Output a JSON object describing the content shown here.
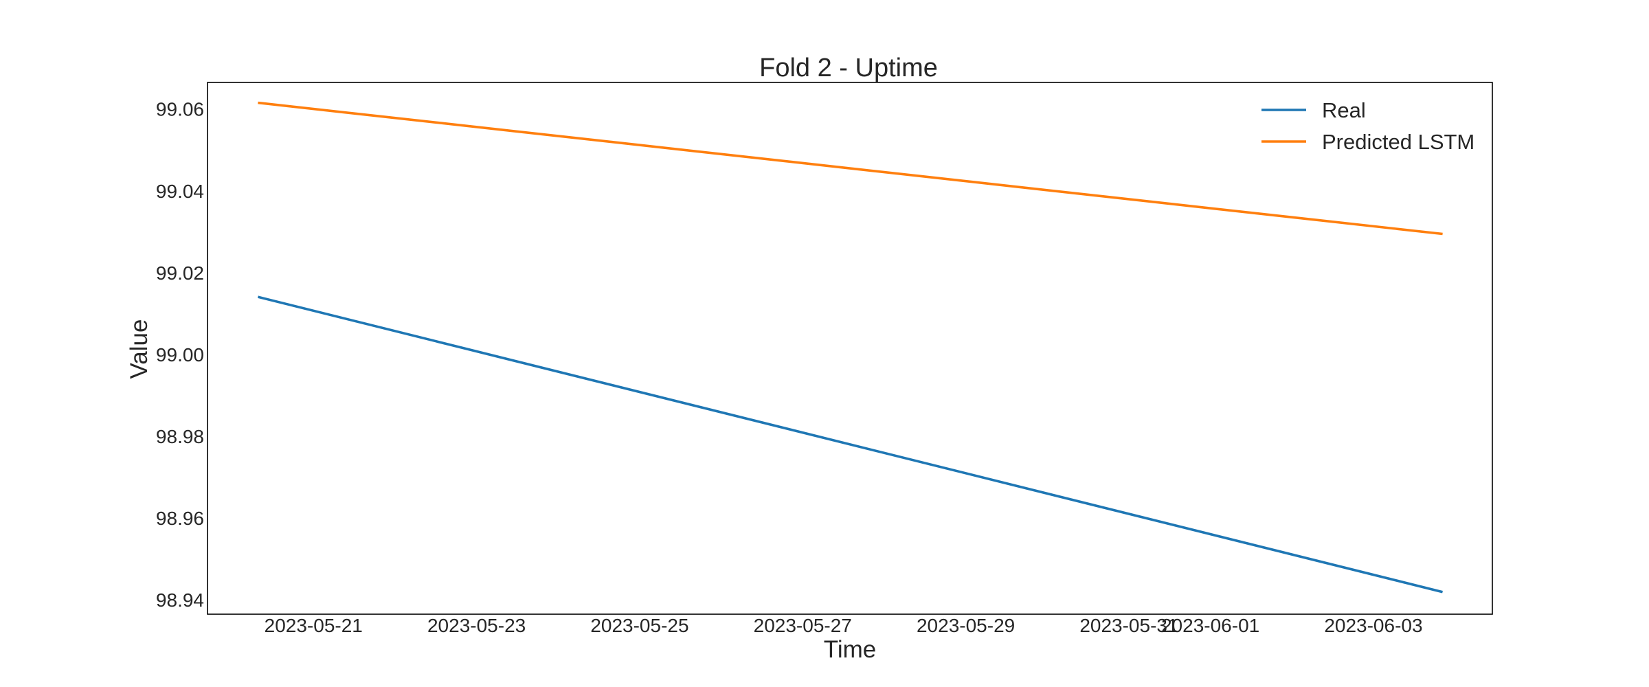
{
  "chart_data": {
    "type": "line",
    "title": "Fold 2 - Uptime",
    "xlabel": "Time",
    "ylabel": "Value",
    "x_range": [
      "2023-05-19T16:48",
      "2023-06-04T11:00"
    ],
    "ylim": [
      98.9365,
      99.0665
    ],
    "yticks": [
      "98.94",
      "98.96",
      "98.98",
      "99.00",
      "99.02",
      "99.04",
      "99.06"
    ],
    "xticks": [
      {
        "label": "2023-05-21",
        "date": "2023-05-21"
      },
      {
        "label": "2023-05-23",
        "date": "2023-05-23"
      },
      {
        "label": "2023-05-25",
        "date": "2023-05-25"
      },
      {
        "label": "2023-05-27",
        "date": "2023-05-27"
      },
      {
        "label": "2023-05-29",
        "date": "2023-05-29"
      },
      {
        "label": "2023-05-31",
        "date": "2023-05-31"
      },
      {
        "label": "2023-06-01",
        "date": "2023-06-01"
      },
      {
        "label": "2023-06-03",
        "date": "2023-06-03"
      }
    ],
    "grid": false,
    "legend": "top-right",
    "series": [
      {
        "name": "Real",
        "color": "#1f77b4",
        "points": [
          {
            "x": "2023-05-20T08:00",
            "y": 99.014
          },
          {
            "x": "2023-06-03T20:00",
            "y": 98.942
          }
        ]
      },
      {
        "name": "Predicted LSTM",
        "color": "#ff7f0e",
        "points": [
          {
            "x": "2023-05-20T08:00",
            "y": 99.0615
          },
          {
            "x": "2023-06-03T20:00",
            "y": 99.0295
          }
        ]
      }
    ]
  }
}
